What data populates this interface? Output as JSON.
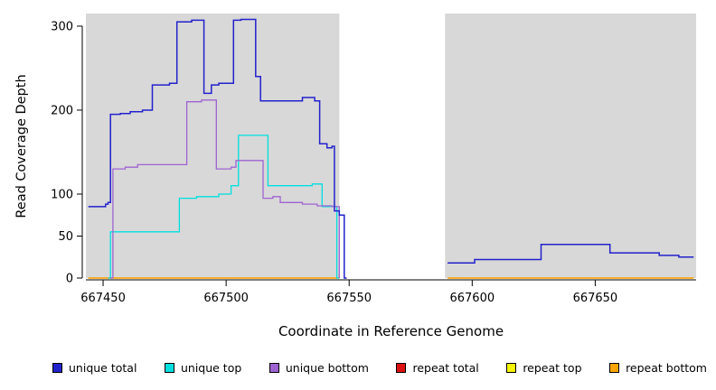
{
  "chart_data": {
    "type": "line",
    "step": true,
    "title": "",
    "xlabel": "Coordinate in Reference Genome",
    "ylabel": "Read Coverage Depth",
    "xlim": [
      667443,
      667691
    ],
    "ylim": [
      0,
      315
    ],
    "x_ticks": [
      667450,
      667500,
      667550,
      667600,
      667650
    ],
    "y_ticks": [
      0,
      50,
      100,
      200,
      300
    ],
    "grid": false,
    "plot_bg": "#d8d8d8",
    "gap_region": {
      "x0": 667546,
      "x1": 667589,
      "color": "#ffffff"
    },
    "legend_position": "bottom",
    "series": [
      {
        "name": "repeat total",
        "color": "#dd1111",
        "width": 1.2,
        "segments": [
          [
            [
              667444,
              0
            ],
            [
              667546,
              0
            ]
          ],
          [
            [
              667590,
              0
            ],
            [
              667690,
              0
            ]
          ]
        ]
      },
      {
        "name": "repeat top",
        "color": "#f5f500",
        "width": 1.2,
        "segments": [
          [
            [
              667444,
              0
            ],
            [
              667546,
              0
            ]
          ],
          [
            [
              667590,
              0
            ],
            [
              667690,
              0
            ]
          ]
        ]
      },
      {
        "name": "repeat bottom",
        "color": "#ffa500",
        "width": 1.2,
        "segments": [
          [
            [
              667444,
              0
            ],
            [
              667546,
              0
            ]
          ],
          [
            [
              667590,
              0
            ],
            [
              667690,
              0
            ]
          ]
        ]
      },
      {
        "name": "unique top",
        "color": "#00dfdf",
        "width": 1.3,
        "segments": [
          [
            [
              667452,
              0
            ],
            [
              667453,
              55
            ],
            [
              667481,
              95
            ],
            [
              667488,
              97
            ],
            [
              667497,
              100
            ],
            [
              667502,
              110
            ],
            [
              667505,
              170
            ],
            [
              667516,
              170
            ],
            [
              667517,
              110
            ],
            [
              667535,
              112
            ],
            [
              667539,
              85
            ],
            [
              667544,
              85
            ],
            [
              667545,
              0
            ],
            [
              667546,
              0
            ]
          ]
        ]
      },
      {
        "name": "unique bottom",
        "color": "#9e63d2",
        "width": 1.3,
        "segments": [
          [
            [
              667453,
              0
            ],
            [
              667454,
              130
            ],
            [
              667459,
              132
            ],
            [
              667464,
              135
            ],
            [
              667484,
              210
            ],
            [
              667490,
              212
            ],
            [
              667496,
              130
            ],
            [
              667502,
              132
            ],
            [
              667504,
              140
            ],
            [
              667515,
              95
            ],
            [
              667519,
              97
            ],
            [
              667522,
              90
            ],
            [
              667531,
              88
            ],
            [
              667537,
              86
            ],
            [
              667543,
              85
            ],
            [
              667546,
              0
            ]
          ]
        ]
      },
      {
        "name": "unique total",
        "color": "#2222cc",
        "width": 1.5,
        "segments": [
          [
            [
              667444,
              85
            ],
            [
              667451,
              88
            ],
            [
              667452,
              90
            ],
            [
              667453,
              195
            ],
            [
              667457,
              196
            ],
            [
              667461,
              198
            ],
            [
              667466,
              200
            ],
            [
              667470,
              230
            ],
            [
              667477,
              232
            ],
            [
              667480,
              305
            ],
            [
              667486,
              307
            ],
            [
              667491,
              220
            ],
            [
              667494,
              230
            ],
            [
              667497,
              232
            ],
            [
              667503,
              307
            ],
            [
              667506,
              308
            ],
            [
              667512,
              240
            ],
            [
              667514,
              211
            ],
            [
              667525,
              211
            ],
            [
              667531,
              215
            ],
            [
              667536,
              211
            ],
            [
              667538,
              160
            ],
            [
              667541,
              155
            ],
            [
              667543,
              157
            ],
            [
              667544,
              80
            ],
            [
              667546,
              75
            ],
            [
              667548,
              0
            ],
            [
              667549,
              0
            ]
          ],
          [
            [
              667590,
              18
            ],
            [
              667601,
              22
            ],
            [
              667628,
              40
            ],
            [
              667656,
              30
            ],
            [
              667676,
              27
            ],
            [
              667684,
              25
            ],
            [
              667690,
              25
            ]
          ]
        ]
      }
    ],
    "legend": [
      {
        "label": "unique total",
        "color": "#2222cc"
      },
      {
        "label": "unique top",
        "color": "#00dfdf"
      },
      {
        "label": "unique bottom",
        "color": "#9e63d2"
      },
      {
        "label": "repeat total",
        "color": "#dd1111"
      },
      {
        "label": "repeat top",
        "color": "#f5f500"
      },
      {
        "label": "repeat bottom",
        "color": "#ffa500"
      }
    ]
  }
}
